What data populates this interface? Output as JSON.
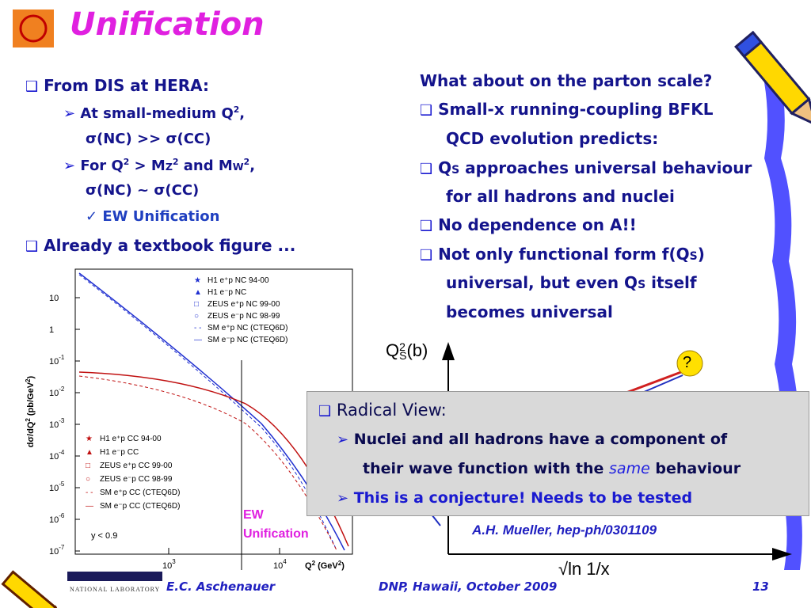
{
  "header": {
    "title": "Unification"
  },
  "left": {
    "b1": "From DIS at HERA:",
    "b1a": [
      "At small-medium Q",
      "2",
      ","
    ],
    "b1a2": "σ(NC) >> σ(CC)",
    "b1b": [
      "For Q",
      "2",
      " > M",
      "Z",
      "2",
      " and M",
      "W",
      "2",
      ","
    ],
    "b1b2": "σ(NC) ~ σ(CC)",
    "b1c": "EW Unification",
    "b2": "Already a textbook figure ..."
  },
  "figure": {
    "y_label": [
      "dσ/dQ",
      "2",
      " (pb/GeV",
      "2",
      ")"
    ],
    "x_label": [
      "Q",
      "2",
      " (GeV",
      "2",
      ")"
    ],
    "y_ticks": [
      {
        "b": "10"
      },
      {
        "b": "1"
      },
      {
        "b": "10",
        "e": "-1"
      },
      {
        "b": "10",
        "e": "-2"
      },
      {
        "b": "10",
        "e": "-3"
      },
      {
        "b": "10",
        "e": "-4"
      },
      {
        "b": "10",
        "e": "-5"
      },
      {
        "b": "10",
        "e": "-6"
      },
      {
        "b": "10",
        "e": "-7"
      }
    ],
    "x_ticks": [
      {
        "b": "10",
        "e": "3"
      },
      {
        "b": "10",
        "e": "4"
      }
    ],
    "legend_nc": [
      "H1 e⁺p NC 94-00",
      "H1 e⁻p NC",
      "ZEUS e⁺p NC 99-00",
      "ZEUS e⁻p NC 98-99",
      "SM e⁺p NC (CTEQ6D)",
      "SM e⁻p NC (CTEQ6D)"
    ],
    "legend_cc": [
      "H1 e⁺p CC 94-00",
      "H1 e⁻p CC",
      "ZEUS e⁺p CC 99-00",
      "ZEUS e⁻p CC 98-99",
      "SM e⁺p CC (CTEQ6D)",
      "SM e⁻p CC (CTEQ6D)"
    ],
    "cut": "y < 0.9",
    "annotation": [
      "EW",
      "Unification"
    ]
  },
  "right": {
    "question": "What about on the parton scale?",
    "i1": [
      "Small-x running-coupling BFKL",
      "QCD evolution predicts:"
    ],
    "i2": [
      "Q",
      "S",
      " approaches universal behaviour",
      "for all hadrons and nuclei"
    ],
    "i3": "No dependence on A!!",
    "i4": [
      "Not only functional form f(Q",
      "S",
      ")",
      "universal, but even Q",
      "S",
      " itself",
      "becomes universal"
    ]
  },
  "sketch": {
    "y_label": [
      "Q",
      "2",
      "S",
      "(b)"
    ],
    "x_label": "√ln 1/x",
    "mark": "?",
    "citation": "A.H. Mueller, hep-ph/0301109"
  },
  "box": {
    "title": "Radical View:",
    "p1": [
      "Nuclei and all hadrons have a component of",
      "their wave function with the ",
      "same",
      " behaviour"
    ],
    "p2": "This is a conjecture! Needs to be tested"
  },
  "footer": {
    "lab": "NATIONAL LABORATORY",
    "author": "E.C. Aschenauer",
    "event": "DNP, Hawaii, October 2009",
    "page": "13"
  }
}
